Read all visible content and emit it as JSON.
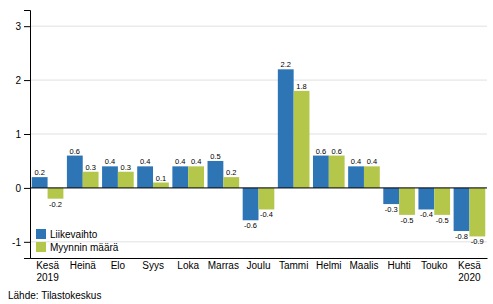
{
  "chart_data": {
    "type": "bar",
    "categories": [
      "Kesä\n2019",
      "Heinä",
      "Elo",
      "Syys",
      "Loka",
      "Marras",
      "Joulu",
      "Tammi",
      "Helmi",
      "Maalis",
      "Huhti",
      "Touko",
      "Kesä\n2020"
    ],
    "series": [
      {
        "name": "Liikevaihto",
        "color": "#2E75B6",
        "values": [
          0.2,
          0.6,
          0.4,
          0.4,
          0.4,
          0.5,
          -0.6,
          2.2,
          0.6,
          0.4,
          -0.3,
          -0.4,
          -0.8
        ]
      },
      {
        "name": "Myynnin määrä",
        "color": "#B4C74B",
        "values": [
          -0.2,
          0.3,
          0.3,
          0.1,
          0.4,
          0.2,
          -0.4,
          1.8,
          0.6,
          0.4,
          -0.5,
          -0.5,
          -0.9
        ]
      }
    ],
    "ylim": [
      -1.3,
      3.3
    ],
    "yticks": [
      -1,
      0,
      1,
      2,
      3
    ],
    "grid": true,
    "legend": "lower left",
    "data_labels": true,
    "source": "Lähde: Tilastokeskus"
  }
}
